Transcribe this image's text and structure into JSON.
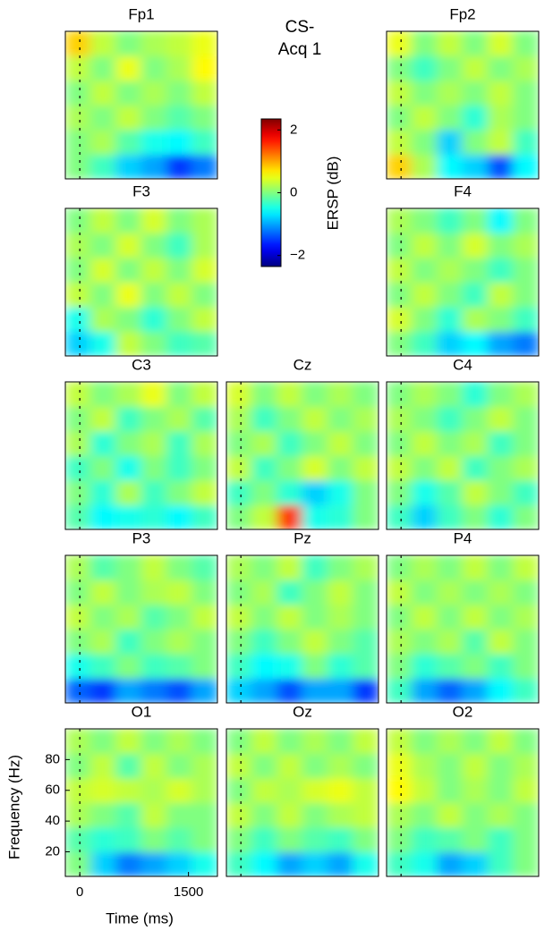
{
  "condition": "CS-",
  "block": "Acq 1",
  "colorbar": {
    "label": "ERSP (dB)",
    "lim": [
      -2.35,
      2.35
    ],
    "ticks": [
      2,
      0,
      {
        "value": -2,
        "label": "−2"
      }
    ],
    "colormap": "jet"
  },
  "grid": {
    "xlim": [
      -200,
      1900
    ],
    "ylim": [
      4,
      100
    ],
    "x": [
      -25,
      325,
      675,
      1025,
      1375,
      1725
    ],
    "y": [
      12,
      28,
      44,
      60,
      76,
      92
    ]
  },
  "chart_data": [
    {
      "type": "heatmap",
      "title": "Fp1",
      "z": [
        [
          0,
          -0.3,
          -0.8,
          -1,
          -1.5,
          -1.2
        ],
        [
          0,
          0.2,
          -0.2,
          -0.5,
          -0.6,
          -0.3
        ],
        [
          0.2,
          0,
          0.3,
          0,
          -0.2,
          0
        ],
        [
          0,
          0.3,
          0,
          0.2,
          0,
          0.3
        ],
        [
          0.3,
          0,
          0.5,
          0,
          0.2,
          0.6
        ],
        [
          0.8,
          0.3,
          0,
          0.2,
          0.3,
          0.5
        ]
      ]
    },
    {
      "type": "heatmap",
      "title": "Fp2",
      "z": [
        [
          0.8,
          0.2,
          -0.6,
          -0.8,
          -1.4,
          -0.6
        ],
        [
          0.3,
          0,
          -0.8,
          0,
          0.3,
          -0.3
        ],
        [
          0,
          0.3,
          0,
          -0.4,
          0.2,
          0
        ],
        [
          0.3,
          0,
          0.2,
          0,
          0.3,
          0
        ],
        [
          0,
          -0.3,
          0,
          0.3,
          0,
          0.2
        ],
        [
          0.5,
          0,
          0.3,
          0,
          0.4,
          0
        ]
      ]
    },
    {
      "type": "heatmap",
      "title": "F3",
      "z": [
        [
          -0.8,
          -0.5,
          0.3,
          0,
          -0.3,
          -0.2
        ],
        [
          -0.5,
          0.2,
          0,
          -0.4,
          0,
          0.3
        ],
        [
          0.3,
          0,
          0.5,
          0,
          0.3,
          0
        ],
        [
          0,
          0.4,
          0,
          0.3,
          0,
          0.4
        ],
        [
          0.2,
          0,
          0.4,
          0,
          -0.3,
          0.2
        ],
        [
          0,
          0.3,
          0,
          0.4,
          0,
          0.2
        ]
      ]
    },
    {
      "type": "heatmap",
      "title": "F4",
      "z": [
        [
          0,
          -0.3,
          -0.8,
          -0.6,
          -1,
          -1.2
        ],
        [
          0.4,
          0,
          -0.4,
          0.2,
          0,
          -0.3
        ],
        [
          0,
          0.3,
          0,
          -0.3,
          0.3,
          0
        ],
        [
          0.3,
          0,
          0.2,
          0,
          -0.3,
          0
        ],
        [
          0,
          0.3,
          0,
          0.4,
          0,
          0.2
        ],
        [
          0.2,
          0,
          -0.3,
          0,
          -0.6,
          0
        ]
      ]
    },
    {
      "type": "heatmap",
      "title": "C3",
      "z": [
        [
          -0.2,
          -0.6,
          -0.5,
          -0.4,
          -0.6,
          -0.3
        ],
        [
          0,
          -0.4,
          0.2,
          -0.3,
          0,
          0.3
        ],
        [
          -0.3,
          0,
          -0.5,
          0,
          -0.3,
          0
        ],
        [
          0.2,
          -0.4,
          0,
          0.2,
          -0.3,
          0.2
        ],
        [
          0,
          0.3,
          -0.3,
          0,
          0.2,
          -0.2
        ],
        [
          0.3,
          0,
          0.2,
          0.5,
          0,
          0.3
        ]
      ]
    },
    {
      "type": "heatmap",
      "title": "Cz",
      "z": [
        [
          0,
          0.3,
          1.5,
          -0.5,
          -0.4,
          0
        ],
        [
          -0.3,
          0,
          -0.4,
          -0.8,
          -0.5,
          0
        ],
        [
          0.3,
          -0.3,
          0,
          0.4,
          0,
          0.3
        ],
        [
          0,
          0.2,
          -0.3,
          0,
          0.3,
          0
        ],
        [
          0.2,
          -0.3,
          0,
          0.3,
          0,
          0.2
        ],
        [
          0.4,
          0,
          0.3,
          0,
          0.2,
          0
        ]
      ]
    },
    {
      "type": "heatmap",
      "title": "C4",
      "z": [
        [
          -0.3,
          -0.8,
          -0.3,
          0,
          -0.4,
          0
        ],
        [
          0,
          -0.5,
          -0.2,
          0.3,
          0,
          -0.3
        ],
        [
          0.3,
          0,
          0.3,
          -0.3,
          0,
          0.2
        ],
        [
          0,
          0.3,
          0,
          0.2,
          -0.3,
          0
        ],
        [
          0.2,
          0,
          -0.3,
          0,
          0.3,
          0
        ],
        [
          0,
          0.2,
          0,
          -0.4,
          0,
          0.2
        ]
      ]
    },
    {
      "type": "heatmap",
      "title": "P3",
      "z": [
        [
          -1.3,
          -1.5,
          -1,
          -1.2,
          -1.4,
          -1
        ],
        [
          -0.5,
          -0.3,
          0,
          -0.3,
          -0.2,
          0
        ],
        [
          0,
          0.2,
          -0.3,
          0,
          0.2,
          0
        ],
        [
          0.3,
          0,
          0.2,
          -0.2,
          0,
          0.3
        ],
        [
          0,
          0.3,
          0,
          0.2,
          0.3,
          0
        ],
        [
          0.2,
          -0.2,
          0,
          0.3,
          0,
          -0.2
        ]
      ]
    },
    {
      "type": "heatmap",
      "title": "Pz",
      "z": [
        [
          -0.8,
          -1,
          -1.4,
          -1,
          -1,
          -1.5
        ],
        [
          -0.3,
          -0.6,
          -0.5,
          0,
          -0.4,
          -0.2
        ],
        [
          0,
          -0.3,
          0,
          0.3,
          0,
          -0.2
        ],
        [
          0.3,
          0,
          0.3,
          0,
          0.2,
          0
        ],
        [
          0,
          0.2,
          -0.3,
          0,
          0.3,
          0
        ],
        [
          0.2,
          0,
          0.3,
          -0.3,
          0,
          0.2
        ]
      ]
    },
    {
      "type": "heatmap",
      "title": "P4",
      "z": [
        [
          -0.3,
          -1,
          -1.3,
          -1,
          -0.6,
          -0.3
        ],
        [
          0,
          -0.4,
          -0.2,
          0,
          -0.3,
          0
        ],
        [
          0.2,
          0,
          0.2,
          -0.2,
          0.3,
          0
        ],
        [
          0,
          0.3,
          0,
          0.3,
          0,
          0.2
        ],
        [
          0.3,
          0,
          0.2,
          0,
          0.2,
          0
        ],
        [
          0,
          0.2,
          0,
          0.3,
          0,
          0.3
        ]
      ]
    },
    {
      "type": "heatmap",
      "title": "O1",
      "xlabel": "Time (ms)",
      "ylabel": "Frequency (Hz)",
      "xticks": [
        0,
        1500
      ],
      "yticks": [
        20,
        40,
        60,
        80
      ],
      "z": [
        [
          0,
          -0.8,
          -1.2,
          -1,
          -0.8,
          -0.5
        ],
        [
          -0.2,
          -0.4,
          -0.3,
          0,
          -0.2,
          0
        ],
        [
          0.2,
          0,
          -0.2,
          0.3,
          0,
          0
        ],
        [
          0.3,
          0.4,
          0.3,
          0.2,
          0.4,
          0.2
        ],
        [
          0,
          0.3,
          -0.2,
          0.3,
          0,
          0.2
        ],
        [
          0.2,
          0,
          0.3,
          0,
          0.2,
          0
        ]
      ]
    },
    {
      "type": "heatmap",
      "title": "Oz",
      "z": [
        [
          -0.3,
          -0.6,
          -1,
          -0.8,
          -1,
          -0.5
        ],
        [
          0,
          -0.3,
          0,
          -0.2,
          -0.3,
          0
        ],
        [
          0.3,
          0,
          0.3,
          0,
          0.2,
          0.3
        ],
        [
          0,
          0.3,
          0.2,
          0.4,
          0.5,
          0.3
        ],
        [
          0.3,
          0,
          0.3,
          0,
          0.2,
          0
        ],
        [
          0,
          0.3,
          0,
          0.2,
          0,
          0.3
        ]
      ]
    },
    {
      "type": "heatmap",
      "title": "O2",
      "z": [
        [
          -0.3,
          -0.5,
          -1,
          -0.8,
          -0.3,
          0
        ],
        [
          0,
          -0.3,
          -0.2,
          0,
          -0.3,
          0
        ],
        [
          0.2,
          0,
          0.3,
          0,
          0.2,
          0
        ],
        [
          0.6,
          0.3,
          0,
          0.2,
          0,
          0.3
        ],
        [
          0.5,
          0.2,
          0,
          0.3,
          0,
          0.2
        ],
        [
          0.3,
          0,
          0.2,
          0,
          0.3,
          0
        ]
      ]
    }
  ]
}
